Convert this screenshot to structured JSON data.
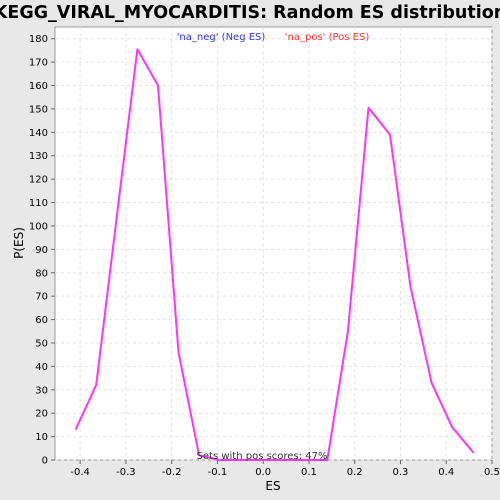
{
  "chart_data": {
    "type": "line",
    "title": "KEGG_VIRAL_MYOCARDITIS: Random ES distribution",
    "xlabel": "ES",
    "ylabel": "P(ES)",
    "xlim": [
      -0.455,
      0.5
    ],
    "ylim": [
      0,
      185
    ],
    "x_ticks": [
      "-0.4",
      "-0.3",
      "-0.2",
      "-0.1",
      "0.0",
      "0.1",
      "0.2",
      "0.3",
      "0.4",
      "0.5"
    ],
    "x_tick_values": [
      -0.4,
      -0.3,
      -0.2,
      -0.1,
      0.0,
      0.1,
      0.2,
      0.3,
      0.4,
      0.5
    ],
    "y_ticks": [
      "0",
      "10",
      "20",
      "30",
      "40",
      "50",
      "60",
      "70",
      "80",
      "90",
      "100",
      "110",
      "120",
      "130",
      "140",
      "150",
      "160",
      "170",
      "180"
    ],
    "y_tick_values": [
      0,
      10,
      20,
      30,
      40,
      50,
      60,
      70,
      80,
      90,
      100,
      110,
      120,
      130,
      140,
      150,
      160,
      170,
      180
    ],
    "grid": true,
    "legend": [
      {
        "label": "'na_neg' (Neg ES)",
        "color": "#3333ff"
      },
      {
        "label": "'na_pos' (Pos ES)",
        "color": "#ff3333"
      }
    ],
    "annotation": "Sets with pos scores: 47%",
    "series": [
      {
        "color": "#ff33ff",
        "x": [
          -0.41,
          -0.365,
          -0.32,
          -0.275,
          -0.23,
          -0.185,
          -0.14,
          -0.095,
          0.14,
          0.185,
          0.23,
          0.277,
          0.322,
          0.368,
          0.413,
          0.46
        ],
        "y": [
          13,
          32,
          104,
          175.5,
          160,
          46,
          2,
          0,
          0,
          55,
          150.5,
          139,
          74,
          33,
          14,
          3
        ]
      }
    ]
  }
}
